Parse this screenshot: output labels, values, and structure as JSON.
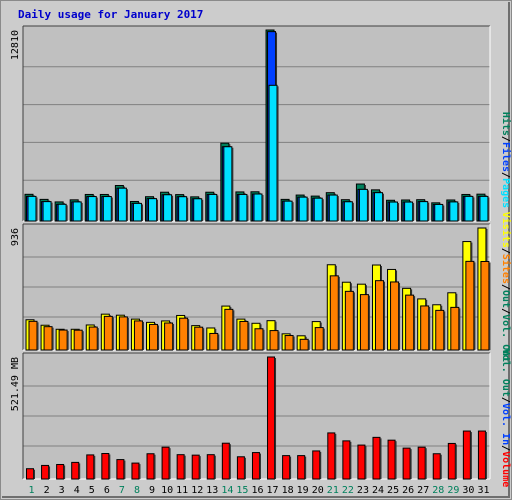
{
  "page_title": "Daily usage for January 2017",
  "colors": {
    "background": "#cccccc",
    "plot_bg": "#c0c0c0",
    "hits": "#00805c",
    "files": "#0040ff",
    "pages": "#00e0ff",
    "visits": "#ffff00",
    "sites": "#ff8000",
    "kbytes": "#ff0000",
    "weekday_label": "#000000",
    "weekend_label": "#00805c"
  },
  "chart_data": [
    {
      "type": "bar",
      "name": "hits-files-pages",
      "categories": [
        "1",
        "2",
        "3",
        "4",
        "5",
        "6",
        "7",
        "8",
        "9",
        "10",
        "11",
        "12",
        "13",
        "14",
        "15",
        "16",
        "17",
        "18",
        "19",
        "20",
        "21",
        "22",
        "23",
        "24",
        "25",
        "26",
        "27",
        "28",
        "29",
        "30",
        "31"
      ],
      "ymax_label": "12810",
      "ymax": 12810,
      "legend": [
        "Hits",
        "Files",
        "Pages"
      ],
      "series": [
        {
          "name": "Hits",
          "values": [
            1790,
            1450,
            1280,
            1420,
            1780,
            1780,
            2380,
            1310,
            1630,
            1930,
            1770,
            1620,
            1930,
            5220,
            1950,
            1960,
            12810,
            1450,
            1740,
            1670,
            1900,
            1430,
            2480,
            2090,
            1390,
            1410,
            1430,
            1220,
            1410,
            1780,
            1800
          ]
        },
        {
          "name": "Files",
          "values": [
            1650,
            1300,
            1120,
            1280,
            1640,
            1640,
            2200,
            1180,
            1500,
            1760,
            1630,
            1490,
            1780,
            4980,
            1780,
            1810,
            12700,
            1330,
            1600,
            1530,
            1740,
            1290,
            2120,
            1900,
            1270,
            1270,
            1300,
            1110,
            1280,
            1650,
            1650
          ]
        },
        {
          "name": "Pages",
          "values": [
            1650,
            1300,
            1120,
            1280,
            1640,
            1640,
            2200,
            1180,
            1500,
            1760,
            1630,
            1490,
            1780,
            4980,
            1780,
            1810,
            9100,
            1330,
            1600,
            1530,
            1740,
            1290,
            2120,
            1900,
            1270,
            1270,
            1300,
            1110,
            1280,
            1650,
            1650
          ]
        }
      ]
    },
    {
      "type": "bar",
      "name": "visits-sites",
      "categories": [
        "1",
        "2",
        "3",
        "4",
        "5",
        "6",
        "7",
        "8",
        "9",
        "10",
        "11",
        "12",
        "13",
        "14",
        "15",
        "16",
        "17",
        "18",
        "19",
        "20",
        "21",
        "22",
        "23",
        "24",
        "25",
        "26",
        "27",
        "28",
        "29",
        "30",
        "31"
      ],
      "ymax_label": "936",
      "ymax": 936,
      "legend": [
        "Visits",
        "Sites",
        "Out",
        "Vol. Out"
      ],
      "series": [
        {
          "name": "Visits",
          "values": [
            232,
            190,
            159,
            159,
            192,
            275,
            267,
            237,
            212,
            223,
            265,
            187,
            169,
            337,
            237,
            205,
            225,
            124,
            109,
            218,
            654,
            520,
            505,
            652,
            618,
            473,
            392,
            347,
            439,
            832,
            936
          ]
        },
        {
          "name": "Sites",
          "values": [
            220,
            179,
            153,
            152,
            176,
            258,
            254,
            223,
            196,
            207,
            244,
            175,
            127,
            312,
            219,
            163,
            149,
            111,
            82,
            172,
            569,
            450,
            425,
            532,
            522,
            421,
            338,
            304,
            327,
            680,
            679
          ]
        }
      ]
    },
    {
      "type": "bar",
      "name": "kbytes",
      "categories": [
        "1",
        "2",
        "3",
        "4",
        "5",
        "6",
        "7",
        "8",
        "9",
        "10",
        "11",
        "12",
        "13",
        "14",
        "15",
        "16",
        "17",
        "18",
        "19",
        "20",
        "21",
        "22",
        "23",
        "24",
        "25",
        "26",
        "27",
        "28",
        "29",
        "30",
        "31"
      ],
      "ymax_label": "521.49 MB",
      "ymax": 521.49,
      "legend": [
        "Volume",
        "Vol. In",
        "Vol. Out"
      ],
      "series": [
        {
          "name": "Volume",
          "values": [
            44,
            58,
            62,
            71,
            103,
            109,
            83,
            68,
            108,
            136,
            104,
            102,
            104,
            153,
            95,
            113,
            521.49,
            100,
            100,
            120,
            197,
            163,
            145,
            178,
            166,
            132,
            136,
            108,
            152,
            205,
            205
          ]
        }
      ]
    }
  ],
  "weekend_days": [
    1,
    7,
    8,
    14,
    15,
    21,
    22,
    28,
    29
  ]
}
